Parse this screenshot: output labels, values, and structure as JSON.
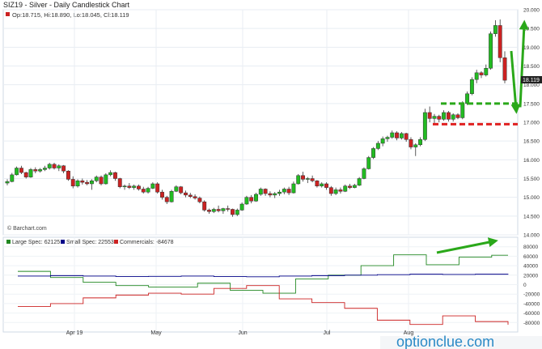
{
  "header": {
    "title": "SIZ19 - Silver - Daily Candlestick Chart",
    "ohlc_text": "Op:18.715, Hi:18.890, Lo:18.045, Cl:18.119",
    "last_price_tag": "18.119",
    "credit": "© Barchart.com"
  },
  "watermark": {
    "text": "optionclue.com"
  },
  "colors": {
    "up_candle": "#22bb22",
    "down_candle": "#cc2222",
    "large_spec": "#228822",
    "small_spec": "#000088",
    "commercials": "#cc2222",
    "annotation_green": "#2aa81a",
    "annotation_red": "#e02020",
    "frame": "#cfd8e4"
  },
  "legend": [
    {
      "label": "Large Spec: 62125",
      "color": "#228822"
    },
    {
      "label": "Small Spec: 22553",
      "color": "#000088"
    },
    {
      "label": "Commercials: -84678",
      "color": "#cc2222"
    }
  ],
  "chart_data": [
    {
      "type": "candlestick",
      "title": "SIZ19 - Silver - Daily Candlestick Chart",
      "y_axis_side": "right",
      "ylim": [
        14.0,
        20.0
      ],
      "y_ticks": [
        "20.000",
        "19.500",
        "19.000",
        "18.500",
        "18.000",
        "17.500",
        "17.000",
        "16.500",
        "16.000",
        "15.500",
        "15.000",
        "14.500",
        "14.000"
      ],
      "x_ticks": [
        "Apr 19",
        "May",
        "Jun",
        "Jul",
        "Aug"
      ],
      "grid": true,
      "candles": [
        [
          15.38,
          15.48,
          15.32,
          15.42
        ],
        [
          15.42,
          15.65,
          15.4,
          15.6
        ],
        [
          15.6,
          15.82,
          15.58,
          15.78
        ],
        [
          15.78,
          15.84,
          15.62,
          15.66
        ],
        [
          15.66,
          15.68,
          15.5,
          15.54
        ],
        [
          15.54,
          15.78,
          15.52,
          15.74
        ],
        [
          15.74,
          15.8,
          15.64,
          15.7
        ],
        [
          15.7,
          15.78,
          15.66,
          15.74
        ],
        [
          15.74,
          15.84,
          15.7,
          15.78
        ],
        [
          15.78,
          15.92,
          15.74,
          15.88
        ],
        [
          15.88,
          15.92,
          15.74,
          15.78
        ],
        [
          15.78,
          15.88,
          15.7,
          15.84
        ],
        [
          15.84,
          15.86,
          15.64,
          15.7
        ],
        [
          15.7,
          15.72,
          15.44,
          15.48
        ],
        [
          15.48,
          15.56,
          15.24,
          15.3
        ],
        [
          15.3,
          15.48,
          15.26,
          15.44
        ],
        [
          15.44,
          15.5,
          15.34,
          15.4
        ],
        [
          15.4,
          15.46,
          15.32,
          15.36
        ],
        [
          15.36,
          15.48,
          15.2,
          15.44
        ],
        [
          15.44,
          15.58,
          15.4,
          15.54
        ],
        [
          15.54,
          15.58,
          15.32,
          15.36
        ],
        [
          15.36,
          15.64,
          15.34,
          15.6
        ],
        [
          15.6,
          15.72,
          15.56,
          15.66
        ],
        [
          15.66,
          15.68,
          15.44,
          15.5
        ],
        [
          15.5,
          15.52,
          15.24,
          15.28
        ],
        [
          15.28,
          15.34,
          15.2,
          15.3
        ],
        [
          15.3,
          15.38,
          15.22,
          15.26
        ],
        [
          15.26,
          15.34,
          15.2,
          15.3
        ],
        [
          15.3,
          15.34,
          15.18,
          15.22
        ],
        [
          15.22,
          15.28,
          15.1,
          15.14
        ],
        [
          15.14,
          15.28,
          15.1,
          15.24
        ],
        [
          15.24,
          15.4,
          15.22,
          15.36
        ],
        [
          15.36,
          15.4,
          15.1,
          15.14
        ],
        [
          15.14,
          15.2,
          14.94,
          15.0
        ],
        [
          15.0,
          15.04,
          14.82,
          14.88
        ],
        [
          14.88,
          15.2,
          14.86,
          15.16
        ],
        [
          15.16,
          15.32,
          15.14,
          15.28
        ],
        [
          15.28,
          15.3,
          15.08,
          15.12
        ],
        [
          15.12,
          15.18,
          15.0,
          15.06
        ],
        [
          15.06,
          15.12,
          14.98,
          15.02
        ],
        [
          15.02,
          15.08,
          14.94,
          14.98
        ],
        [
          14.98,
          15.02,
          14.84,
          14.88
        ],
        [
          14.88,
          14.92,
          14.62,
          14.66
        ],
        [
          14.66,
          14.7,
          14.56,
          14.62
        ],
        [
          14.62,
          14.72,
          14.58,
          14.68
        ],
        [
          14.68,
          14.78,
          14.6,
          14.64
        ],
        [
          14.64,
          14.72,
          14.56,
          14.7
        ],
        [
          14.7,
          14.78,
          14.62,
          14.68
        ],
        [
          14.68,
          14.7,
          14.48,
          14.54
        ],
        [
          14.54,
          14.7,
          14.5,
          14.66
        ],
        [
          14.66,
          14.86,
          14.64,
          14.82
        ],
        [
          14.82,
          15.04,
          14.8,
          15.0
        ],
        [
          15.0,
          15.06,
          14.84,
          14.9
        ],
        [
          14.9,
          15.12,
          14.88,
          15.08
        ],
        [
          15.08,
          15.26,
          15.04,
          15.22
        ],
        [
          15.22,
          15.24,
          15.04,
          15.1
        ],
        [
          15.1,
          15.16,
          15.0,
          15.06
        ],
        [
          15.06,
          15.14,
          14.98,
          15.1
        ],
        [
          15.1,
          15.2,
          15.04,
          15.14
        ],
        [
          15.14,
          15.26,
          15.08,
          15.22
        ],
        [
          15.22,
          15.28,
          15.06,
          15.12
        ],
        [
          15.12,
          15.42,
          15.1,
          15.36
        ],
        [
          15.36,
          15.62,
          15.34,
          15.58
        ],
        [
          15.58,
          15.68,
          15.42,
          15.48
        ],
        [
          15.48,
          15.54,
          15.38,
          15.5
        ],
        [
          15.5,
          15.58,
          15.4,
          15.44
        ],
        [
          15.44,
          15.46,
          15.26,
          15.3
        ],
        [
          15.3,
          15.4,
          15.26,
          15.36
        ],
        [
          15.36,
          15.4,
          15.2,
          15.26
        ],
        [
          15.26,
          15.3,
          15.04,
          15.1
        ],
        [
          15.1,
          15.26,
          15.06,
          15.2
        ],
        [
          15.2,
          15.26,
          15.1,
          15.16
        ],
        [
          15.16,
          15.34,
          15.14,
          15.3
        ],
        [
          15.3,
          15.36,
          15.22,
          15.26
        ],
        [
          15.26,
          15.36,
          15.24,
          15.32
        ],
        [
          15.32,
          15.54,
          15.3,
          15.5
        ],
        [
          15.5,
          15.8,
          15.48,
          15.76
        ],
        [
          15.76,
          16.1,
          15.74,
          16.06
        ],
        [
          16.06,
          16.34,
          16.02,
          16.3
        ],
        [
          16.3,
          16.5,
          16.26,
          16.44
        ],
        [
          16.44,
          16.62,
          16.36,
          16.56
        ],
        [
          16.56,
          16.64,
          16.48,
          16.6
        ],
        [
          16.6,
          16.78,
          16.56,
          16.72
        ],
        [
          16.72,
          16.76,
          16.52,
          16.58
        ],
        [
          16.58,
          16.74,
          16.54,
          16.7
        ],
        [
          16.7,
          16.72,
          16.48,
          16.54
        ],
        [
          16.54,
          16.6,
          16.28,
          16.34
        ],
        [
          16.34,
          16.44,
          16.1,
          16.4
        ],
        [
          16.4,
          16.6,
          16.36,
          16.54
        ],
        [
          16.54,
          17.36,
          16.5,
          17.26
        ],
        [
          17.26,
          17.42,
          17.0,
          17.1
        ],
        [
          17.1,
          17.22,
          16.98,
          17.16
        ],
        [
          17.16,
          17.2,
          17.0,
          17.08
        ],
        [
          17.08,
          17.32,
          17.04,
          17.26
        ],
        [
          17.26,
          17.3,
          17.02,
          17.08
        ],
        [
          17.08,
          17.24,
          17.02,
          17.2
        ],
        [
          17.2,
          17.24,
          17.08,
          17.12
        ],
        [
          17.12,
          17.56,
          17.08,
          17.5
        ],
        [
          17.5,
          17.82,
          17.46,
          17.76
        ],
        [
          17.76,
          18.2,
          17.72,
          18.14
        ],
        [
          18.14,
          18.4,
          18.04,
          18.32
        ],
        [
          18.32,
          18.36,
          18.18,
          18.26
        ],
        [
          18.26,
          18.54,
          18.22,
          18.44
        ],
        [
          18.44,
          19.42,
          18.4,
          19.36
        ],
        [
          19.36,
          19.72,
          19.28,
          19.58
        ],
        [
          19.58,
          19.74,
          18.6,
          18.72
        ],
        [
          18.72,
          18.89,
          18.04,
          18.12
        ]
      ],
      "annotations": [
        {
          "type": "dashed-level",
          "value": 17.5,
          "color": "#2aa81a"
        },
        {
          "type": "dashed-level",
          "value": 16.95,
          "color": "#e02020"
        },
        {
          "type": "arrow",
          "from": 17.4,
          "to": 19.6,
          "color": "#2aa81a"
        },
        {
          "type": "arrow",
          "from": 18.9,
          "to": 17.35,
          "color": "#2aa81a"
        }
      ]
    },
    {
      "type": "line",
      "title": "",
      "y_axis_side": "right",
      "ylim": [
        -100000,
        100000
      ],
      "y_ticks": [
        "80000",
        "60000",
        "40000",
        "20000",
        "0",
        "-20000",
        "-40000",
        "-60000",
        "-80000"
      ],
      "series": [
        {
          "name": "Large Spec: 62125",
          "color": "#228822",
          "values": [
            28000,
            28000,
            15000,
            15000,
            5000,
            5000,
            -2000,
            -2000,
            -5000,
            -5000,
            -5000,
            3000,
            3000,
            -12000,
            -12000,
            -18000,
            -18000,
            12000,
            12000,
            20000,
            20000,
            40000,
            40000,
            63000,
            63000,
            42000,
            42000,
            58000,
            58000,
            62125,
            62125
          ]
        },
        {
          "name": "Small Spec: 22553",
          "color": "#000088",
          "values": [
            18000,
            18000,
            19000,
            19000,
            18000,
            18000,
            17000,
            17000,
            17500,
            17500,
            18000,
            18000,
            17000,
            17000,
            16500,
            16500,
            18000,
            18000,
            19000,
            19000,
            20000,
            20000,
            21000,
            21000,
            22000,
            22000,
            21500,
            21500,
            22000,
            22000,
            22553
          ]
        },
        {
          "name": "Commercials: -84678",
          "color": "#cc2222",
          "values": [
            -46000,
            -46000,
            -40000,
            -40000,
            -28000,
            -28000,
            -22000,
            -22000,
            -18000,
            -18000,
            -20000,
            -20000,
            -8000,
            -8000,
            -2000,
            -2000,
            -30000,
            -30000,
            -38000,
            -38000,
            -50000,
            -50000,
            -75000,
            -75000,
            -84000,
            -84000,
            -66000,
            -66000,
            -78000,
            -78000,
            -84678
          ]
        }
      ],
      "annotations": [
        {
          "type": "arrow",
          "direction": "up",
          "color": "#2aa81a"
        }
      ]
    }
  ]
}
